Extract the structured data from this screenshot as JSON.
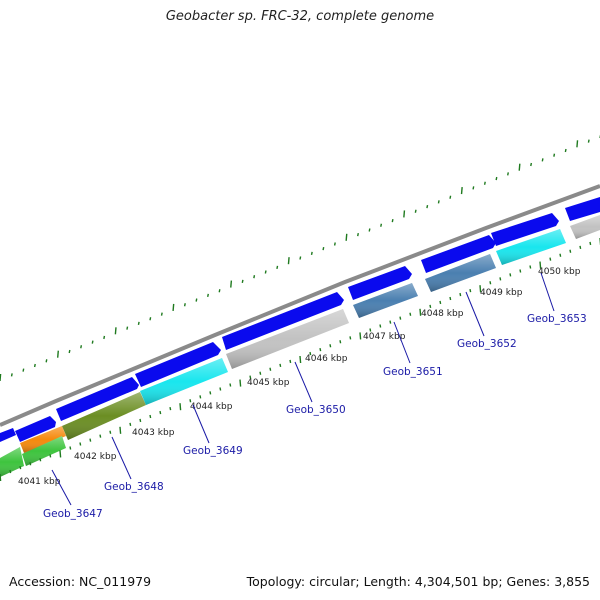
{
  "title": "Geobacter sp. FRC-32, complete genome",
  "footer": {
    "accession": "Accession: NC_011979",
    "summary": "Topology: circular; Length: 4,304,501 bp; Genes: 3,855"
  },
  "colors": {
    "forward_gene": "#0a0aee",
    "backbone": "#8a8a8a",
    "tick": "#1f7a1f",
    "label": "#1a1aa6"
  },
  "kbp_labels": [
    "4041 kbp",
    "4042 kbp",
    "4043 kbp",
    "4044 kbp",
    "4045 kbp",
    "4046 kbp",
    "4047 kbp",
    "4048 kbp",
    "4049 kbp",
    "4050 kbp"
  ],
  "genes": [
    {
      "name": "Geob_3647",
      "color": "#3ec43e"
    },
    {
      "name": "Geob_3648",
      "color": "#6b8e23"
    },
    {
      "name": "Geob_3649",
      "color": "#19e6ee"
    },
    {
      "name": "Geob_3650",
      "color": "#c2c2c2"
    },
    {
      "name": "Geob_3651",
      "color": "#4a7fb0"
    },
    {
      "name": "Geob_3652",
      "color": "#4a7fb0"
    },
    {
      "name": "Geob_3653",
      "color": "#19e6ee"
    }
  ],
  "extra_segments": [
    {
      "name": "orange-gene",
      "color": "#f5890c"
    }
  ]
}
